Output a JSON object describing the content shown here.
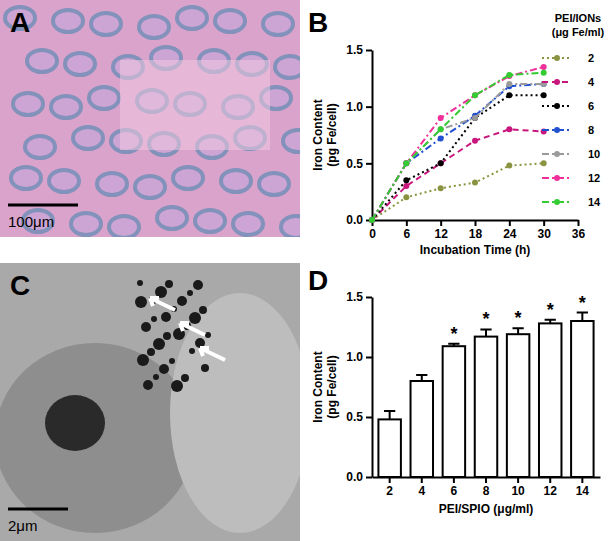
{
  "images": [
    {
      "label": "A",
      "scale_bar": "100μm"
    },
    {
      "label": "C",
      "scale_bar": "2μm"
    }
  ],
  "chart_data": [
    {
      "type": "line",
      "title": "B",
      "x_label": "Incubation Time (h)",
      "y_label": [
        "Iron Content",
        "(pg Fe/cell)"
      ],
      "annotations": [
        "PEI/IONs",
        "(μg Fe/ml)"
      ],
      "x": [
        0,
        6,
        12,
        18,
        24,
        30
      ],
      "xlim": [
        0,
        36
      ],
      "xticks": [
        0,
        6,
        12,
        18,
        24,
        30,
        36
      ],
      "ylim": [
        0,
        1.5
      ],
      "yticks": [
        {
          "value": 0,
          "label": "0.0"
        },
        {
          "value": 0.5,
          "label": "0.5"
        },
        {
          "value": 1,
          "label": "1.0"
        },
        {
          "value": 1.5,
          "label": "1.5"
        }
      ],
      "legend": "right",
      "series": [
        {
          "name": "2",
          "color": "#8a9440",
          "marker": "circle",
          "line_style": "dotted",
          "values": [
            0,
            0.2,
            0.28,
            0.33,
            0.48,
            0.5
          ]
        },
        {
          "name": "4",
          "color": "#c8167c",
          "marker": "circle",
          "line_style": "dashed",
          "values": [
            0,
            0.3,
            0.5,
            0.7,
            0.8,
            0.78
          ]
        },
        {
          "name": "6",
          "color": "#000000",
          "marker": "circle",
          "line_style": "dotted",
          "values": [
            0,
            0.35,
            0.5,
            0.9,
            1.1,
            1.1
          ]
        },
        {
          "name": "8",
          "color": "#2050d0",
          "marker": "circle",
          "line_style": "dashdot",
          "values": [
            0,
            0.5,
            0.72,
            0.92,
            1.18,
            1.2
          ]
        },
        {
          "name": "10",
          "color": "#9a9a9a",
          "marker": "circle",
          "line_style": "dashdot",
          "values": [
            0,
            0.5,
            0.8,
            0.9,
            1.2,
            1.2
          ]
        },
        {
          "name": "12",
          "color": "#f0309a",
          "marker": "circle",
          "line_style": "dashdot",
          "values": [
            0,
            0.5,
            0.9,
            1.1,
            1.27,
            1.35
          ]
        },
        {
          "name": "14",
          "color": "#33cc33",
          "marker": "circle",
          "line_style": "dashdot",
          "values": [
            0,
            0.5,
            0.8,
            1.1,
            1.28,
            1.3
          ]
        }
      ]
    },
    {
      "type": "bar",
      "title": "D",
      "x_label": "PEI/SPIO (μg/ml)",
      "y_label": [
        "Iron Content",
        "(pg Fe/cell)"
      ],
      "categories": [
        "2",
        "4",
        "6",
        "8",
        "10",
        "12",
        "14"
      ],
      "values": [
        0.48,
        0.8,
        1.09,
        1.17,
        1.19,
        1.28,
        1.3
      ],
      "errors": [
        0.07,
        0.05,
        0.02,
        0.06,
        0.05,
        0.03,
        0.07
      ],
      "significance": [
        null,
        null,
        "*",
        "*",
        "*",
        "*",
        "*"
      ],
      "color": "#ffffff",
      "ylim": [
        0,
        1.5
      ],
      "yticks": [
        {
          "value": 0,
          "label": "0.0"
        },
        {
          "value": 0.5,
          "label": "0.5"
        },
        {
          "value": 1,
          "label": "1.0"
        },
        {
          "value": 1.5,
          "label": "1.5"
        }
      ]
    }
  ]
}
